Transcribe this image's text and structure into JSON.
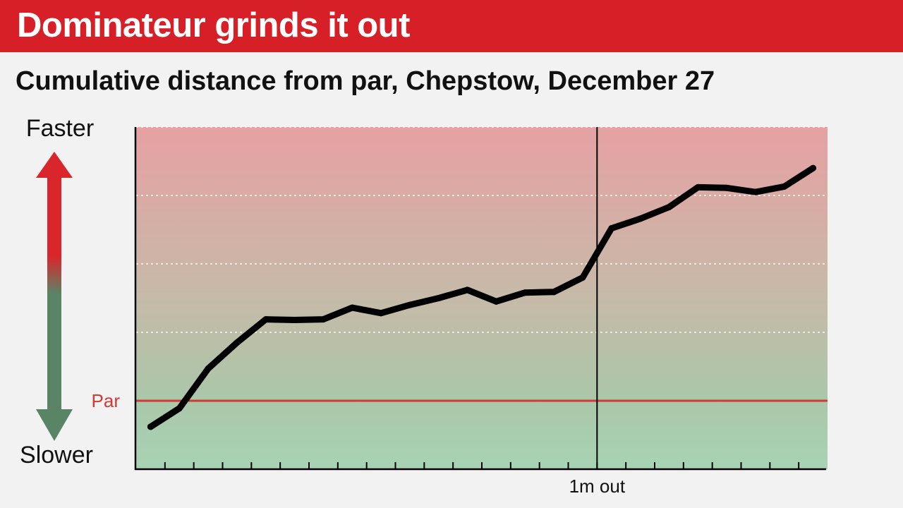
{
  "header": {
    "title": "Dominateur grinds it out",
    "subtitle": "Cumulative distance from par, Chepstow, December 27"
  },
  "colors": {
    "brand_red": "#d61f26",
    "faster_red": "#d9262d",
    "slower_green": "#5a8466",
    "par_line": "#d23a34",
    "line": "#000000"
  },
  "chart_data": {
    "type": "line",
    "title": "Cumulative distance from par, Chepstow, December 27",
    "y_top_label": "Faster",
    "y_bottom_label": "Slower",
    "par_label": "Par",
    "par_value": 0,
    "marker": {
      "label": "1m out",
      "x": 16
    },
    "xlim": [
      0,
      24
    ],
    "ylim": [
      -1,
      4
    ],
    "grid": true,
    "series": [
      {
        "x": [
          0.5,
          1.5,
          2.5,
          3.5,
          4.5,
          5.5,
          6.5,
          7.5,
          8.5,
          9.5,
          10.5,
          11.5,
          12.5,
          13.5,
          14.5,
          15.5,
          16.5,
          17.5,
          18.5,
          19.5,
          20.5,
          21.5,
          22.5,
          23.5
        ],
        "values": [
          -0.38,
          -0.11,
          0.47,
          0.85,
          1.19,
          1.18,
          1.19,
          1.36,
          1.28,
          1.4,
          1.5,
          1.62,
          1.45,
          1.58,
          1.59,
          1.8,
          2.52,
          2.66,
          2.83,
          3.12,
          3.11,
          3.05,
          3.13,
          3.4
        ]
      }
    ]
  }
}
